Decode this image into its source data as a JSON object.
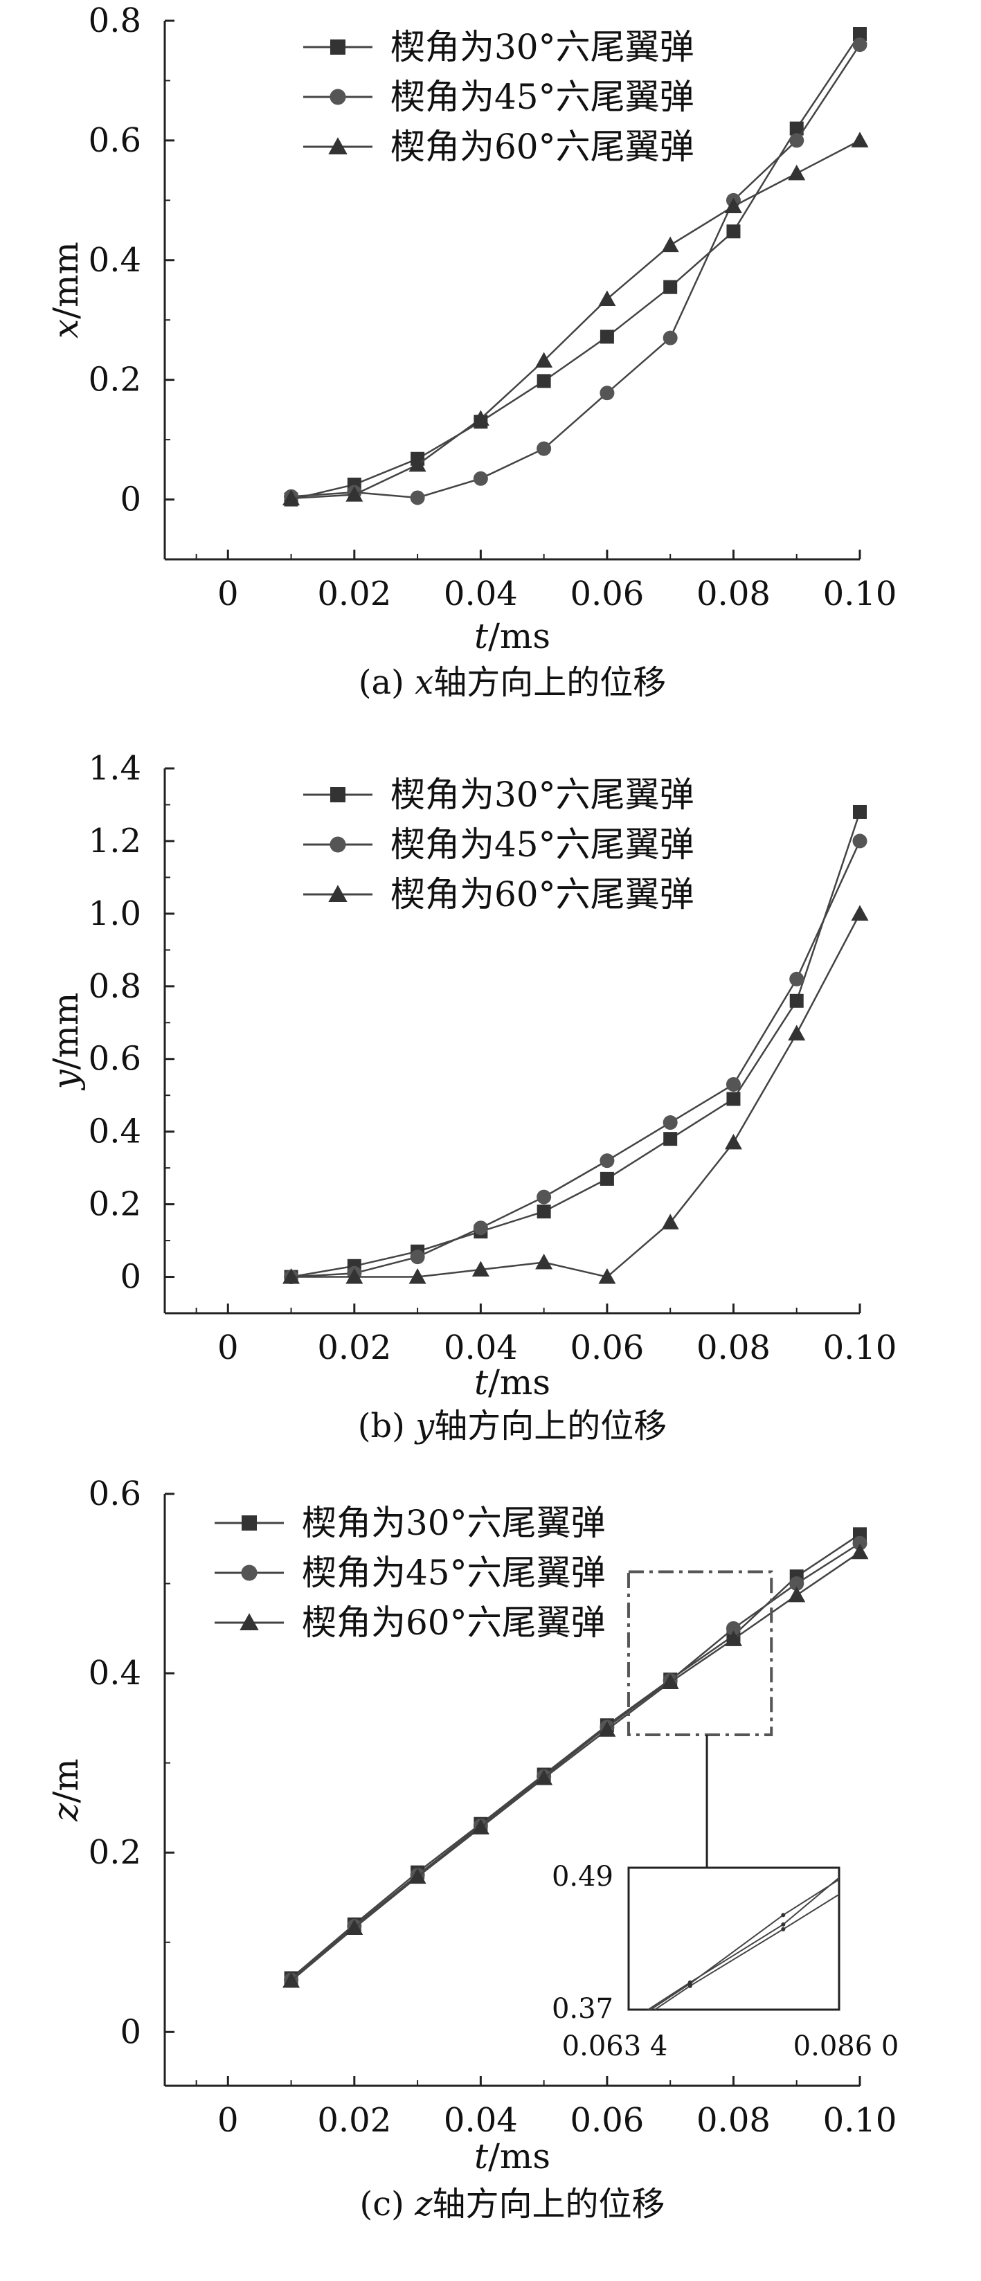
{
  "chart_data": [
    {
      "type": "line",
      "caption": "(a) x轴方向上的位移",
      "xlabel": "t/ms",
      "ylabel": "x/mm",
      "xlim": [
        -0.01,
        0.1
      ],
      "ylim": [
        -0.1,
        0.8
      ],
      "xticks": [
        0,
        0.02,
        0.04,
        0.06,
        0.08,
        0.1
      ],
      "xtick_labels": [
        "0",
        "0.02",
        "0.04",
        "0.06",
        "0.08",
        "0.10"
      ],
      "yticks": [
        0,
        0.2,
        0.4,
        0.6,
        0.8
      ],
      "ytick_labels": [
        "0",
        "0.2",
        "0.4",
        "0.6",
        "0.8"
      ],
      "legend_position": "top-center",
      "x": [
        0.01,
        0.02,
        0.03,
        0.04,
        0.05,
        0.06,
        0.07,
        0.08,
        0.09,
        0.1
      ],
      "series": [
        {
          "name": "楔角为30°六尾翼弹",
          "marker": "square",
          "values": [
            0.0,
            0.025,
            0.068,
            0.13,
            0.198,
            0.272,
            0.355,
            0.448,
            0.62,
            0.778
          ]
        },
        {
          "name": "楔角为45°六尾翼弹",
          "marker": "circle",
          "values": [
            0.005,
            0.012,
            0.003,
            0.035,
            0.085,
            0.178,
            0.27,
            0.5,
            0.6,
            0.76
          ]
        },
        {
          "name": "楔角为60°六尾翼弹",
          "marker": "triangle",
          "values": [
            0.002,
            0.008,
            0.058,
            0.135,
            0.232,
            0.335,
            0.425,
            0.49,
            0.545,
            0.6
          ]
        }
      ]
    },
    {
      "type": "line",
      "caption": "(b) y轴方向上的位移",
      "xlabel": "t/ms",
      "ylabel": "y/mm",
      "xlim": [
        -0.01,
        0.1
      ],
      "ylim": [
        -0.1,
        1.4
      ],
      "xticks": [
        0,
        0.02,
        0.04,
        0.06,
        0.08,
        0.1
      ],
      "xtick_labels": [
        "0",
        "0.02",
        "0.04",
        "0.06",
        "0.08",
        "0.10"
      ],
      "yticks": [
        0,
        0.2,
        0.4,
        0.6,
        0.8,
        1.0,
        1.2,
        1.4
      ],
      "ytick_labels": [
        "0",
        "0.2",
        "0.4",
        "0.6",
        "0.8",
        "1.0",
        "1.2",
        "1.4"
      ],
      "legend_position": "top-center",
      "x": [
        0.01,
        0.02,
        0.03,
        0.04,
        0.05,
        0.06,
        0.07,
        0.08,
        0.09,
        0.1
      ],
      "series": [
        {
          "name": "楔角为30°六尾翼弹",
          "marker": "square",
          "values": [
            0.0,
            0.03,
            0.07,
            0.125,
            0.18,
            0.27,
            0.38,
            0.49,
            0.76,
            1.28
          ]
        },
        {
          "name": "楔角为45°六尾翼弹",
          "marker": "circle",
          "values": [
            0.0,
            0.01,
            0.055,
            0.135,
            0.22,
            0.32,
            0.425,
            0.53,
            0.82,
            1.2
          ]
        },
        {
          "name": "楔角为60°六尾翼弹",
          "marker": "triangle",
          "values": [
            0.0,
            0.0,
            0.0,
            0.02,
            0.04,
            0.0,
            0.15,
            0.37,
            0.67,
            1.0
          ]
        }
      ]
    },
    {
      "type": "line",
      "caption": "(c) z轴方向上的位移",
      "xlabel": "t/ms",
      "ylabel": "z/m",
      "xlim": [
        -0.01,
        0.1
      ],
      "ylim": [
        -0.06,
        0.6
      ],
      "xticks": [
        0,
        0.02,
        0.04,
        0.06,
        0.08,
        0.1
      ],
      "xtick_labels": [
        "0",
        "0.02",
        "0.04",
        "0.06",
        "0.08",
        "0.10"
      ],
      "yticks": [
        0,
        0.2,
        0.4,
        0.6
      ],
      "ytick_labels": [
        "0",
        "0.2",
        "0.4",
        "0.6"
      ],
      "legend_position": "top-left",
      "x": [
        0.01,
        0.02,
        0.03,
        0.04,
        0.05,
        0.06,
        0.07,
        0.08,
        0.09,
        0.1
      ],
      "series": [
        {
          "name": "楔角为30°六尾翼弹",
          "marker": "square",
          "values": [
            0.06,
            0.12,
            0.178,
            0.232,
            0.287,
            0.342,
            0.393,
            0.442,
            0.508,
            0.555
          ]
        },
        {
          "name": "楔角为45°六尾翼弹",
          "marker": "circle",
          "values": [
            0.058,
            0.118,
            0.175,
            0.23,
            0.285,
            0.34,
            0.392,
            0.45,
            0.5,
            0.545
          ]
        },
        {
          "name": "楔角为60°六尾翼弹",
          "marker": "triangle",
          "values": [
            0.057,
            0.116,
            0.173,
            0.228,
            0.283,
            0.337,
            0.39,
            0.438,
            0.487,
            0.535
          ]
        }
      ],
      "zoom_box": {
        "x_range": [
          0.0634,
          0.086
        ],
        "y_range": [
          0.37,
          0.49
        ]
      },
      "inset": {
        "xlim": [
          0.0634,
          0.086
        ],
        "ylim": [
          0.37,
          0.49
        ],
        "xtick_labels": [
          "0.063 4",
          "0.086 0"
        ],
        "ytick_labels": [
          "0.37",
          "0.49"
        ]
      }
    }
  ]
}
